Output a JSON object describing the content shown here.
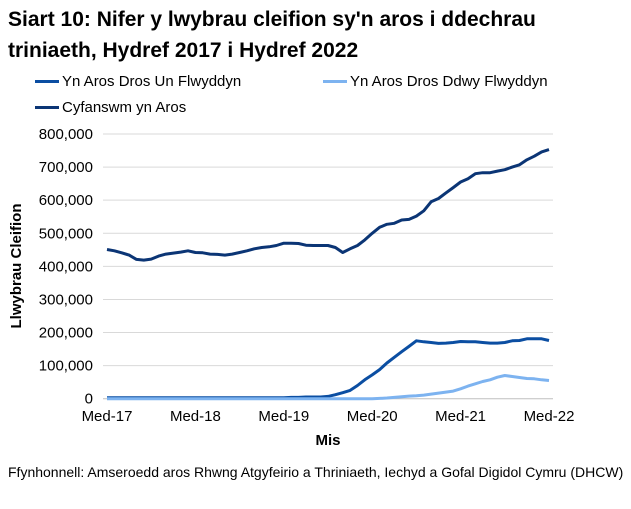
{
  "chart_data": {
    "type": "line",
    "title": "Siart 10: Nifer y lwybrau cleifion sy'n aros i ddechrau triniaeth, Hydref 2017 i Hydref 2022",
    "xlabel": "Mis",
    "ylabel": "Llwybrau Cleifion",
    "ylim": [
      0,
      800000
    ],
    "yticks": [
      "0",
      "100,000",
      "200,000",
      "300,000",
      "400,000",
      "500,000",
      "600,000",
      "700,000",
      "800,000"
    ],
    "xtick_labels": [
      "Med-17",
      "Med-18",
      "Med-19",
      "Med-20",
      "Med-21",
      "Med-22"
    ],
    "grid": "horizontal",
    "legend_placement": "top",
    "x": [
      "2017-12",
      "2018-01",
      "2018-02",
      "2018-03",
      "2018-04",
      "2018-05",
      "2018-06",
      "2018-07",
      "2018-08",
      "2018-09",
      "2018-10",
      "2018-11",
      "2018-12",
      "2019-01",
      "2019-02",
      "2019-03",
      "2019-04",
      "2019-05",
      "2019-06",
      "2019-07",
      "2019-08",
      "2019-09",
      "2019-10",
      "2019-11",
      "2019-12",
      "2020-01",
      "2020-02",
      "2020-03",
      "2020-04",
      "2020-05",
      "2020-06",
      "2020-07",
      "2020-08",
      "2020-09",
      "2020-10",
      "2020-11",
      "2020-12",
      "2021-01",
      "2021-02",
      "2021-03",
      "2021-04",
      "2021-05",
      "2021-06",
      "2021-07",
      "2021-08",
      "2021-09",
      "2021-10",
      "2021-11",
      "2021-12",
      "2022-01",
      "2022-02",
      "2022-03",
      "2022-04",
      "2022-05",
      "2022-06",
      "2022-07",
      "2022-08",
      "2022-09",
      "2022-10",
      "2022-11",
      "2022-12"
    ],
    "series": [
      {
        "name": "Yn Aros Dros Un Flwyddyn",
        "color": "#0B4EA2",
        "values": [
          3000,
          3000,
          3000,
          3000,
          3000,
          3000,
          3000,
          3000,
          3000,
          3000,
          3000,
          3000,
          3000,
          3000,
          3000,
          3000,
          3000,
          3000,
          3000,
          3000,
          3000,
          3000,
          3000,
          3000,
          3000,
          4000,
          4000,
          5000,
          5000,
          5000,
          7000,
          12000,
          18000,
          25000,
          40000,
          57000,
          72000,
          88000,
          108000,
          125000,
          142000,
          158000,
          175000,
          172000,
          170000,
          167000,
          168000,
          170000,
          173000,
          172000,
          172000,
          170000,
          168000,
          168000,
          170000,
          175000,
          176000,
          181000,
          181000,
          181000,
          176000
        ]
      },
      {
        "name": "Yn Aros Dros Ddwy Flwyddyn",
        "color": "#7DB3F0",
        "values": [
          0,
          0,
          0,
          0,
          0,
          0,
          0,
          0,
          0,
          0,
          0,
          0,
          0,
          0,
          0,
          0,
          0,
          0,
          0,
          0,
          0,
          0,
          0,
          0,
          0,
          0,
          0,
          0,
          0,
          0,
          0,
          0,
          0,
          0,
          0,
          0,
          0,
          1000,
          2000,
          4000,
          6000,
          8000,
          9000,
          11000,
          14000,
          17000,
          20000,
          23000,
          30000,
          38000,
          45000,
          52000,
          57000,
          65000,
          70000,
          67000,
          64000,
          61000,
          60000,
          57000,
          55000
        ]
      },
      {
        "name": "Cyfanswm yn Aros",
        "color": "#0B3575",
        "values": [
          451000,
          447000,
          441000,
          434000,
          421000,
          419000,
          422000,
          431000,
          437000,
          440000,
          443000,
          447000,
          442000,
          441000,
          437000,
          436000,
          434000,
          437000,
          442000,
          447000,
          453000,
          457000,
          459000,
          463000,
          470000,
          470000,
          469000,
          464000,
          463000,
          463000,
          463000,
          457000,
          442000,
          453000,
          463000,
          480000,
          500000,
          518000,
          527000,
          530000,
          540000,
          542000,
          552000,
          568000,
          595000,
          605000,
          622000,
          638000,
          655000,
          665000,
          680000,
          683000,
          683000,
          688000,
          692000,
          700000,
          707000,
          722000,
          733000,
          746000,
          753000
        ]
      }
    ],
    "source": "Ffynhonnell: Amseroedd aros Rhwng Atgyfeirio a Thriniaeth, Iechyd a Gofal Digidol Cymru (DHCW)"
  }
}
